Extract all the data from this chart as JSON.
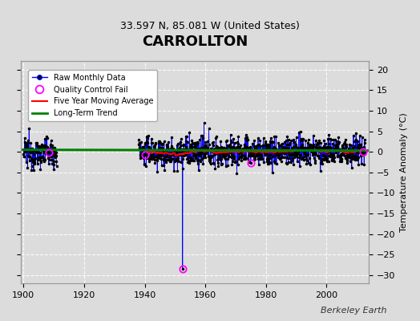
{
  "title": "CARROLLTON",
  "subtitle": "33.597 N, 85.081 W (United States)",
  "ylabel": "Temperature Anomaly (°C)",
  "credit": "Berkeley Earth",
  "ylim": [
    -32,
    22
  ],
  "xlim": [
    1899,
    2014
  ],
  "yticks": [
    -30,
    -25,
    -20,
    -15,
    -10,
    -5,
    0,
    5,
    10,
    15,
    20
  ],
  "xticks": [
    1900,
    1920,
    1940,
    1960,
    1980,
    2000
  ],
  "background_color": "#dcdcdc",
  "plot_background": "#dcdcdc",
  "raw_line_color": "blue",
  "raw_marker_color": "black",
  "qc_fail_color": "magenta",
  "moving_avg_color": "red",
  "trend_color": "green",
  "seed": 12345,
  "segment1_start": 1900.0,
  "segment1_end": 1911.0,
  "segment2_start": 1938.0,
  "segment2_end": 2013.0,
  "outlier_year": 1952.5,
  "outlier_value": -28.5,
  "qc_years": [
    1908.5,
    1940.0,
    1952.5,
    1975.0,
    2012.0
  ],
  "qc_values": [
    -1.5,
    2.5,
    -28.5,
    -1.5,
    3.5
  ]
}
